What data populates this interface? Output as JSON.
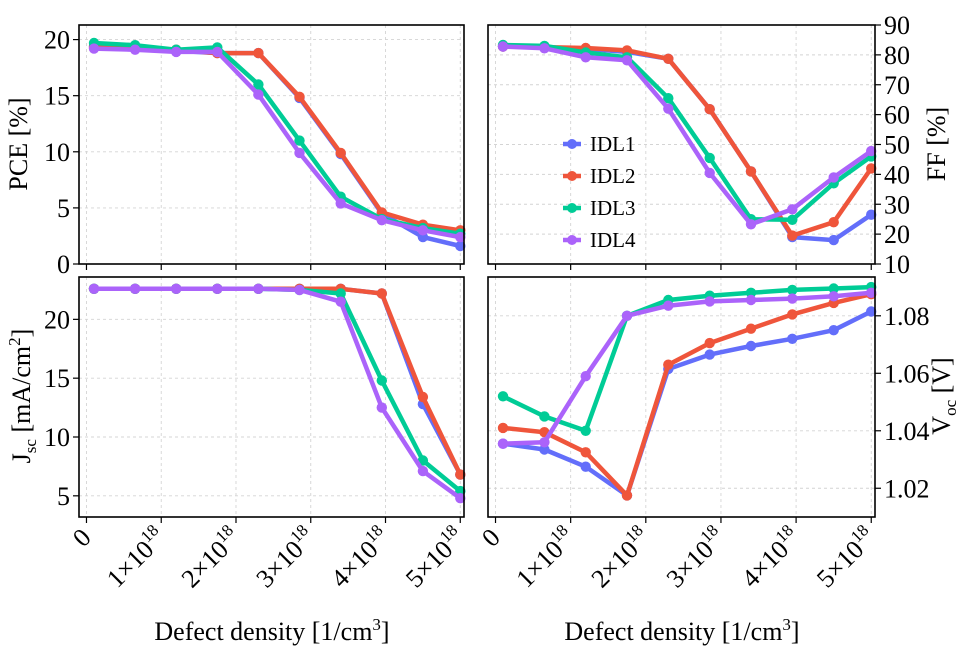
{
  "x_tick_labels": [
    {
      "base": "0",
      "exp": ""
    },
    {
      "base": "1×10",
      "exp": "18"
    },
    {
      "base": "2×10",
      "exp": "18"
    },
    {
      "base": "3×10",
      "exp": "18"
    },
    {
      "base": "4×10",
      "exp": "18"
    },
    {
      "base": "5×10",
      "exp": "18"
    }
  ],
  "xlabel": {
    "base": "Defect density [1/cm",
    "exp": "3",
    "close": "]"
  },
  "legend": [
    "IDL1",
    "IDL2",
    "IDL3",
    "IDL4"
  ],
  "colors": {
    "IDL1": "#636efa",
    "IDL2": "#ef553b",
    "IDL3": "#00cc96",
    "IDL4": "#ab63fa"
  },
  "chart_data": [
    {
      "type": "line",
      "panel": "top-left",
      "ylabel": "PCE [%]",
      "xlim": [
        -1e+17,
        5.05e+18
      ],
      "ylim": [
        0,
        21.3
      ],
      "yticks": [
        0,
        5,
        10,
        15,
        20
      ],
      "x": [
        1e+17,
        6.5e+17,
        1.2e+18,
        1.75e+18,
        2.3e+18,
        2.85e+18,
        3.4e+18,
        3.95e+18,
        4.5e+18,
        5e+18
      ],
      "series": [
        {
          "name": "IDL1",
          "values": [
            19.4,
            19.2,
            19.0,
            18.8,
            18.8,
            14.8,
            9.8,
            4.5,
            2.4,
            1.6
          ]
        },
        {
          "name": "IDL2",
          "values": [
            19.3,
            19.2,
            19.1,
            18.8,
            18.8,
            14.9,
            9.9,
            4.6,
            3.5,
            3.0
          ]
        },
        {
          "name": "IDL3",
          "values": [
            19.7,
            19.5,
            19.1,
            19.3,
            16.0,
            11.0,
            6.0,
            4.0,
            3.2,
            2.7
          ]
        },
        {
          "name": "IDL4",
          "values": [
            19.2,
            19.1,
            18.9,
            18.9,
            15.1,
            9.9,
            5.4,
            3.9,
            3.0,
            2.4
          ]
        }
      ]
    },
    {
      "type": "line",
      "panel": "top-right",
      "ylabel": "FF [%]",
      "y_axis_side": "right",
      "legend_position": "center-left",
      "xlim": [
        -1e+17,
        5.05e+18
      ],
      "ylim": [
        10,
        90
      ],
      "yticks": [
        10,
        20,
        30,
        40,
        50,
        60,
        70,
        80,
        90
      ],
      "x": [
        1e+17,
        6.5e+17,
        1.2e+18,
        1.75e+18,
        2.3e+18,
        2.85e+18,
        3.4e+18,
        3.95e+18,
        4.5e+18,
        5e+18
      ],
      "series": [
        {
          "name": "IDL1",
          "values": [
            82.8,
            82.5,
            82.0,
            81.0,
            78.7,
            61.8,
            41.0,
            19.0,
            18.0,
            26.5
          ]
        },
        {
          "name": "IDL2",
          "values": [
            82.8,
            82.6,
            82.3,
            81.5,
            78.7,
            61.8,
            41.0,
            19.5,
            24.0,
            42.0
          ]
        },
        {
          "name": "IDL3",
          "values": [
            83.3,
            83.0,
            80.8,
            79.2,
            65.5,
            45.5,
            25.0,
            24.8,
            37.0,
            46.0
          ]
        },
        {
          "name": "IDL4",
          "values": [
            82.8,
            82.2,
            79.2,
            78.2,
            62.0,
            40.5,
            23.3,
            28.3,
            39.0,
            47.8
          ]
        }
      ]
    },
    {
      "type": "line",
      "panel": "bottom-left",
      "ylabel": {
        "base": "J",
        "sub": "sc",
        "mid": " [mA/cm",
        "sup": "2",
        "close": "]"
      },
      "xlim": [
        -1e+17,
        5.05e+18
      ],
      "ylim": [
        3.2,
        23.6
      ],
      "yticks": [
        5,
        10,
        15,
        20
      ],
      "x": [
        1e+17,
        6.5e+17,
        1.2e+18,
        1.75e+18,
        2.3e+18,
        2.85e+18,
        3.4e+18,
        3.95e+18,
        4.5e+18,
        5e+18
      ],
      "series": [
        {
          "name": "IDL1",
          "values": [
            22.6,
            22.6,
            22.6,
            22.6,
            22.6,
            22.6,
            22.6,
            22.2,
            12.8,
            6.8
          ]
        },
        {
          "name": "IDL2",
          "values": [
            22.6,
            22.6,
            22.6,
            22.6,
            22.6,
            22.6,
            22.6,
            22.2,
            13.4,
            6.8
          ]
        },
        {
          "name": "IDL3",
          "values": [
            22.6,
            22.6,
            22.6,
            22.6,
            22.6,
            22.5,
            22.2,
            14.8,
            8.0,
            5.4
          ]
        },
        {
          "name": "IDL4",
          "values": [
            22.6,
            22.6,
            22.6,
            22.6,
            22.6,
            22.5,
            21.5,
            12.5,
            7.1,
            4.8
          ]
        }
      ]
    },
    {
      "type": "line",
      "panel": "bottom-right",
      "ylabel": {
        "base": "V",
        "sub": "oc",
        "close": " [V]"
      },
      "y_axis_side": "right",
      "xlim": [
        -1e+17,
        5.05e+18
      ],
      "ylim": [
        1.01,
        1.0935
      ],
      "yticks": [
        1.02,
        1.04,
        1.06,
        1.08
      ],
      "ytick_labels": [
        "1.02",
        "1.04",
        "1.06",
        "1.08"
      ],
      "x": [
        1e+17,
        6.5e+17,
        1.2e+18,
        1.75e+18,
        2.3e+18,
        2.85e+18,
        3.4e+18,
        3.95e+18,
        4.5e+18,
        5e+18
      ],
      "series": [
        {
          "name": "IDL1",
          "values": [
            1.0355,
            1.0335,
            1.0275,
            1.0175,
            1.0615,
            1.0665,
            1.0695,
            1.072,
            1.075,
            1.0815
          ]
        },
        {
          "name": "IDL2",
          "values": [
            1.041,
            1.0395,
            1.0325,
            1.0175,
            1.063,
            1.0705,
            1.0755,
            1.0805,
            1.0845,
            1.0875
          ]
        },
        {
          "name": "IDL3",
          "values": [
            1.052,
            1.045,
            1.04,
            1.08,
            1.0855,
            1.087,
            1.088,
            1.089,
            1.0895,
            1.09
          ]
        },
        {
          "name": "IDL4",
          "values": [
            1.0355,
            1.036,
            1.059,
            1.08,
            1.0835,
            1.085,
            1.0855,
            1.086,
            1.0868,
            1.088
          ]
        }
      ]
    }
  ]
}
